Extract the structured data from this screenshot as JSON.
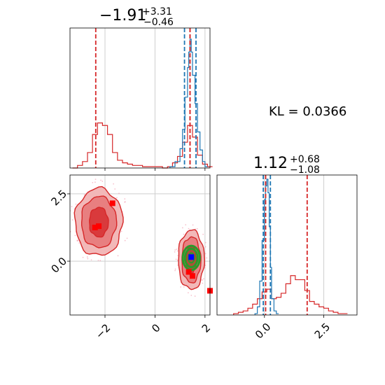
{
  "chart_data": [
    {
      "panel": "top-left",
      "type": "histogram",
      "title": {
        "main": "−1.91",
        "plus": "+3.31",
        "minus": "−0.46"
      },
      "xlim": [
        -3.4,
        2.2
      ],
      "grid": true,
      "vlines": {
        "red": [
          -2.37,
          1.4,
          1.4
        ],
        "blue": [
          1.18,
          1.64
        ]
      },
      "series": [
        {
          "color": "#d62728",
          "bins": [
            -3.3,
            -3.1,
            -2.9,
            -2.7,
            -2.5,
            -2.3,
            -2.1,
            -1.9,
            -1.7,
            -1.5,
            -1.3,
            -1.1,
            -0.9,
            -0.7,
            -0.5,
            -0.3,
            -0.1,
            0.1,
            0.3,
            0.5,
            0.7,
            0.9,
            1.1,
            1.3,
            1.5,
            1.7,
            1.9,
            2.1
          ],
          "counts": [
            0,
            0.02,
            0.05,
            0.12,
            0.26,
            0.35,
            0.33,
            0.26,
            0.12,
            0.06,
            0.04,
            0.03,
            0.02,
            0.02,
            0.01,
            0.01,
            0.01,
            0.01,
            0,
            0.01,
            0.04,
            0.09,
            0.2,
            0.33,
            0.24,
            0.1,
            0.03,
            0.01
          ]
        },
        {
          "color": "#1f77b4",
          "bins": [
            0.6,
            0.8,
            1.0,
            1.1,
            1.2,
            1.3,
            1.35,
            1.4,
            1.45,
            1.5,
            1.6,
            1.7,
            1.8,
            1.9,
            2.0
          ],
          "counts": [
            0.01,
            0.05,
            0.15,
            0.3,
            0.55,
            0.78,
            0.9,
            1.0,
            0.9,
            0.72,
            0.5,
            0.28,
            0.14,
            0.05,
            0.01
          ]
        }
      ]
    },
    {
      "panel": "bottom-left",
      "type": "contour",
      "xlim": [
        -3.4,
        2.2
      ],
      "ylim": [
        -2.0,
        3.2
      ],
      "xticks": [
        "−2",
        "0",
        "2"
      ],
      "yticks": [
        "0.0",
        "2.5"
      ],
      "grid": true,
      "red_modes": [
        {
          "cx": -2.25,
          "cy": 1.45,
          "levels": [
            [
              0.95,
              1.25
            ],
            [
              0.7,
              0.95
            ],
            [
              0.38,
              0.55
            ]
          ]
        },
        {
          "cx": 1.45,
          "cy": 0.05,
          "levels": [
            [
              0.52,
              1.1
            ],
            [
              0.38,
              0.85
            ],
            [
              0.2,
              0.52
            ]
          ]
        }
      ],
      "green_mode": {
        "cx": 1.45,
        "cy": 0.12,
        "levels": [
          [
            0.34,
            0.45
          ],
          [
            0.25,
            0.34
          ],
          [
            0.12,
            0.18
          ]
        ]
      },
      "red_markers": [
        [
          -2.25,
          1.3
        ],
        [
          -2.4,
          1.25
        ],
        [
          -1.7,
          2.15
        ],
        [
          1.5,
          -0.55
        ],
        [
          1.35,
          -0.4
        ],
        [
          2.2,
          -1.1
        ]
      ],
      "blue_marker": [
        1.45,
        0.15
      ]
    },
    {
      "panel": "bottom-right",
      "type": "histogram",
      "title": {
        "main": "1.12",
        "plus": "+0.68",
        "minus": "−1.08"
      },
      "xlim": [
        -2.0,
        3.9
      ],
      "xticks": [
        "0.0",
        "2.5"
      ],
      "grid": true,
      "vlines": {
        "red": [
          0.05,
          1.8
        ],
        "blue": [
          -0.05,
          0.25
        ]
      },
      "series": [
        {
          "color": "#d62728",
          "bins": [
            -1.3,
            -1.1,
            -0.9,
            -0.7,
            -0.5,
            -0.3,
            -0.1,
            0.1,
            0.3,
            0.5,
            0.7,
            0.9,
            1.1,
            1.3,
            1.5,
            1.7,
            1.9,
            2.1,
            2.3,
            2.5,
            2.7,
            2.9,
            3.1,
            3.3
          ],
          "counts": [
            0.01,
            0.02,
            0.03,
            0.05,
            0.08,
            0.12,
            0.17,
            0.19,
            0.12,
            0.13,
            0.16,
            0.23,
            0.29,
            0.26,
            0.26,
            0.18,
            0.1,
            0.08,
            0.06,
            0.05,
            0.03,
            0.02,
            0.01,
            0.01
          ]
        },
        {
          "color": "#1f77b4",
          "bins": [
            -0.4,
            -0.3,
            -0.2,
            -0.1,
            0.0,
            0.05,
            0.1,
            0.15,
            0.2,
            0.25,
            0.3,
            0.4,
            0.5
          ],
          "counts": [
            0.01,
            0.06,
            0.25,
            0.55,
            0.85,
            0.95,
            1.0,
            0.9,
            0.65,
            0.35,
            0.12,
            0.03,
            0.01
          ]
        }
      ]
    }
  ],
  "kl_label": "KL = 0.0366"
}
